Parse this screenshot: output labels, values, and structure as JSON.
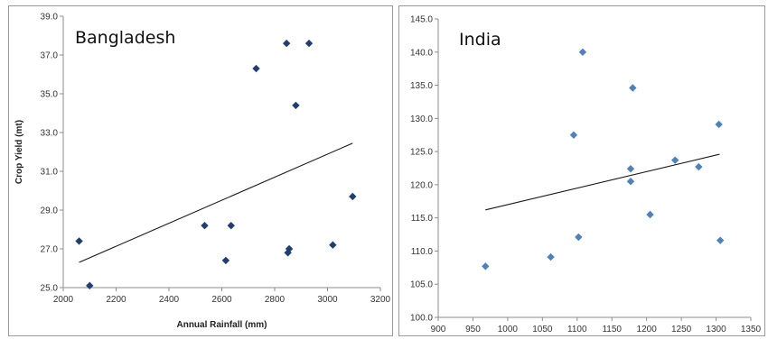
{
  "chart_data": [
    {
      "type": "scatter",
      "title": "Bangladesh",
      "xlabel": "Annual Rainfall (mm)",
      "ylabel": "Crop Yield (mt)",
      "xlim": [
        2000,
        3200
      ],
      "ylim": [
        25.0,
        39.0
      ],
      "x_ticks": [
        "2000",
        "2200",
        "2400",
        "2600",
        "2800",
        "3000",
        "3200"
      ],
      "y_ticks": [
        "25.0",
        "27.0",
        "29.0",
        "31.0",
        "33.0",
        "35.0",
        "37.0",
        "39.0"
      ],
      "marker_color": "#1f3f73",
      "trendline": {
        "type": "linear",
        "x": [
          2060,
          3095
        ],
        "y": [
          26.3,
          32.45
        ]
      },
      "points": [
        {
          "x": 2060,
          "y": 27.4
        },
        {
          "x": 2100,
          "y": 25.1
        },
        {
          "x": 2535,
          "y": 28.2
        },
        {
          "x": 2615,
          "y": 26.4
        },
        {
          "x": 2635,
          "y": 28.2
        },
        {
          "x": 2730,
          "y": 36.3
        },
        {
          "x": 2845,
          "y": 37.6
        },
        {
          "x": 2850,
          "y": 26.8
        },
        {
          "x": 2855,
          "y": 27.0
        },
        {
          "x": 2880,
          "y": 34.4
        },
        {
          "x": 2930,
          "y": 37.6
        },
        {
          "x": 3020,
          "y": 27.2
        },
        {
          "x": 3095,
          "y": 29.7
        }
      ]
    },
    {
      "type": "scatter",
      "title": "India",
      "xlabel": "",
      "ylabel": "",
      "xlim": [
        900,
        1350
      ],
      "ylim": [
        100.0,
        145.0
      ],
      "x_ticks": [
        "900",
        "950",
        "1000",
        "1050",
        "1100",
        "1150",
        "1200",
        "1250",
        "1300",
        "1350"
      ],
      "y_ticks": [
        "100.0",
        "105.0",
        "110.0",
        "115.0",
        "120.0",
        "125.0",
        "130.0",
        "135.0",
        "140.0",
        "145.0"
      ],
      "marker_color": "#4f81bd",
      "trendline": {
        "type": "linear",
        "x": [
          968,
          1305
        ],
        "y": [
          116.2,
          124.6
        ]
      },
      "points": [
        {
          "x": 968,
          "y": 107.7
        },
        {
          "x": 1062,
          "y": 109.1
        },
        {
          "x": 1095,
          "y": 127.5
        },
        {
          "x": 1102,
          "y": 112.1
        },
        {
          "x": 1108,
          "y": 140.0
        },
        {
          "x": 1177,
          "y": 122.4
        },
        {
          "x": 1177,
          "y": 120.5
        },
        {
          "x": 1180,
          "y": 134.6
        },
        {
          "x": 1205,
          "y": 115.5
        },
        {
          "x": 1241,
          "y": 123.7
        },
        {
          "x": 1275,
          "y": 122.7
        },
        {
          "x": 1304,
          "y": 129.1
        },
        {
          "x": 1306,
          "y": 111.6
        }
      ]
    }
  ]
}
